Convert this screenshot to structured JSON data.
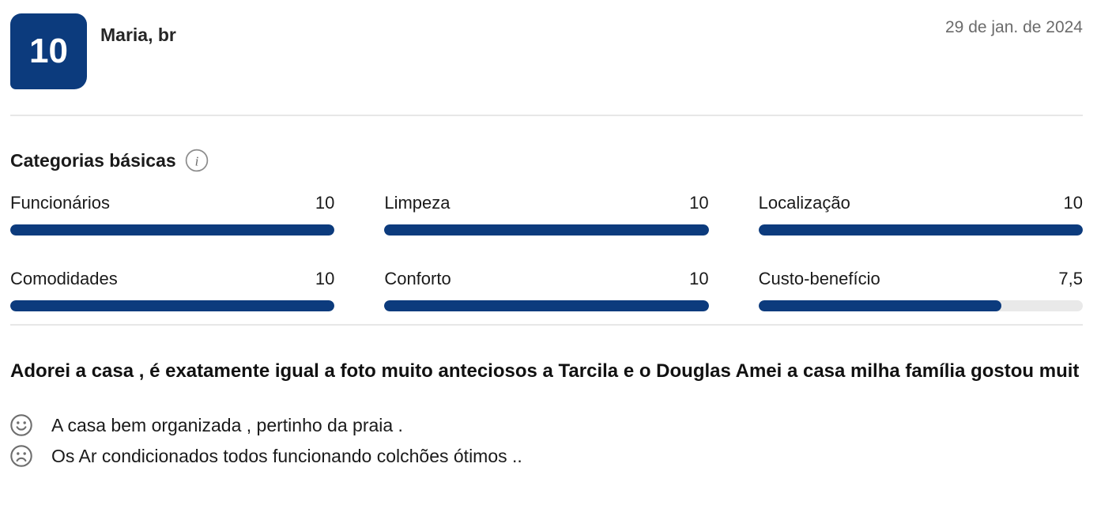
{
  "review": {
    "score": "10",
    "reviewer": "Maria, br",
    "date": "29 de jan. de 2024",
    "section_title": "Categorias básicas",
    "categories": [
      {
        "label": "Funcionários",
        "value": "10",
        "percent": 100
      },
      {
        "label": "Limpeza",
        "value": "10",
        "percent": 100
      },
      {
        "label": "Localização",
        "value": "10",
        "percent": 100
      },
      {
        "label": "Comodidades",
        "value": "10",
        "percent": 100
      },
      {
        "label": "Conforto",
        "value": "10",
        "percent": 100
      },
      {
        "label": "Custo-benefício",
        "value": "7,5",
        "percent": 75
      }
    ],
    "title": "Adorei a casa , é exatamente igual a foto muito anteciosos a Tarcila e o Douglas Amei a casa milha família gostou muit",
    "positive": "A casa bem organizada , pertinho da praia .",
    "negative": "Os Ar condicionados todos funcionando colchões ótimos ..",
    "icons": {
      "info": "info-icon",
      "positive": "happy-face-icon",
      "negative": "sad-face-icon"
    },
    "colors": {
      "brand_blue": "#0c3b7d",
      "track_gray": "#e9e9e9",
      "muted_text": "#6b6b6b"
    }
  }
}
